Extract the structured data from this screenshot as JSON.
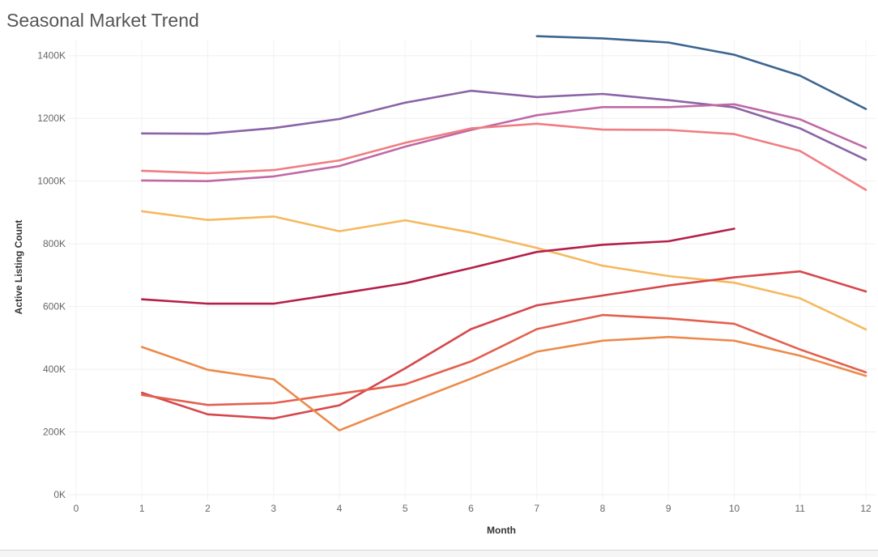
{
  "chart_data": {
    "type": "line",
    "title": "Seasonal Market Trend",
    "xlabel": "Month",
    "ylabel": "Active Listing Count",
    "xlim": [
      0,
      12
    ],
    "ylim": [
      0,
      1500000
    ],
    "x_ticks": [
      "0",
      "1",
      "2",
      "3",
      "4",
      "5",
      "6",
      "7",
      "8",
      "9",
      "10",
      "11",
      "12"
    ],
    "y_ticks": [
      {
        "value": 0,
        "label": "0K"
      },
      {
        "value": 200000,
        "label": "200K"
      },
      {
        "value": 400000,
        "label": "400K"
      },
      {
        "value": 600000,
        "label": "600K"
      },
      {
        "value": 800000,
        "label": "800K"
      },
      {
        "value": 1000000,
        "label": "1000K"
      },
      {
        "value": 1200000,
        "label": "1200K"
      },
      {
        "value": 1400000,
        "label": "1400K"
      }
    ],
    "grid": true,
    "legend": "none",
    "series": [
      {
        "color": "#3b6591",
        "x": [
          7,
          8,
          9,
          10,
          11,
          12
        ],
        "values": [
          1462000,
          1455000,
          1442000,
          1403000,
          1336000,
          1230000
        ]
      },
      {
        "color": "#8a64a6",
        "x": [
          1,
          2,
          3,
          4,
          5,
          6,
          7,
          8,
          9,
          10,
          11,
          12
        ],
        "values": [
          1152000,
          1151000,
          1169000,
          1198000,
          1250000,
          1288000,
          1268000,
          1278000,
          1258000,
          1235000,
          1168000,
          1068000
        ]
      },
      {
        "color": "#c069a6",
        "x": [
          1,
          2,
          3,
          4,
          5,
          6,
          7,
          8,
          9,
          10,
          11,
          12
        ],
        "values": [
          1002000,
          1000000,
          1015000,
          1048000,
          1110000,
          1163000,
          1210000,
          1236000,
          1236000,
          1245000,
          1197000,
          1106000
        ]
      },
      {
        "color": "#f07d82",
        "x": [
          1,
          2,
          3,
          4,
          5,
          6,
          7,
          8,
          9,
          10,
          11,
          12
        ],
        "values": [
          1033000,
          1025000,
          1035000,
          1066000,
          1122000,
          1168000,
          1183000,
          1164000,
          1163000,
          1150000,
          1096000,
          972000
        ]
      },
      {
        "color": "#f5b95f",
        "x": [
          1,
          2,
          3,
          4,
          5,
          6,
          7,
          8,
          9,
          10,
          11,
          12
        ],
        "values": [
          904000,
          876000,
          887000,
          840000,
          875000,
          836000,
          787000,
          730000,
          697000,
          676000,
          626000,
          527000
        ]
      },
      {
        "color": "#b41f4a",
        "x": [
          1,
          2,
          3,
          4,
          5,
          6,
          7,
          8,
          9,
          10
        ],
        "values": [
          623000,
          609000,
          609000,
          641000,
          674000,
          723000,
          774000,
          797000,
          808000,
          848000
        ]
      },
      {
        "color": "#d6474c",
        "x": [
          1,
          2,
          3,
          4,
          5,
          6,
          7,
          8,
          9,
          10,
          11,
          12
        ],
        "values": [
          325000,
          256000,
          243000,
          285000,
          403000,
          528000,
          604000,
          635000,
          667000,
          693000,
          712000,
          648000
        ]
      },
      {
        "color": "#e3604e",
        "x": [
          1,
          2,
          3,
          4,
          5,
          6,
          7,
          8,
          9,
          10,
          11,
          12
        ],
        "values": [
          318000,
          286000,
          292000,
          322000,
          352000,
          425000,
          528000,
          573000,
          562000,
          545000,
          463000,
          390000
        ]
      },
      {
        "color": "#ec8a4b",
        "x": [
          1,
          2,
          3,
          4,
          5,
          6,
          7,
          8,
          9,
          10,
          11,
          12
        ],
        "values": [
          471000,
          398000,
          368000,
          205000,
          289000,
          370000,
          456000,
          491000,
          503000,
          491000,
          443000,
          379000
        ]
      }
    ]
  }
}
